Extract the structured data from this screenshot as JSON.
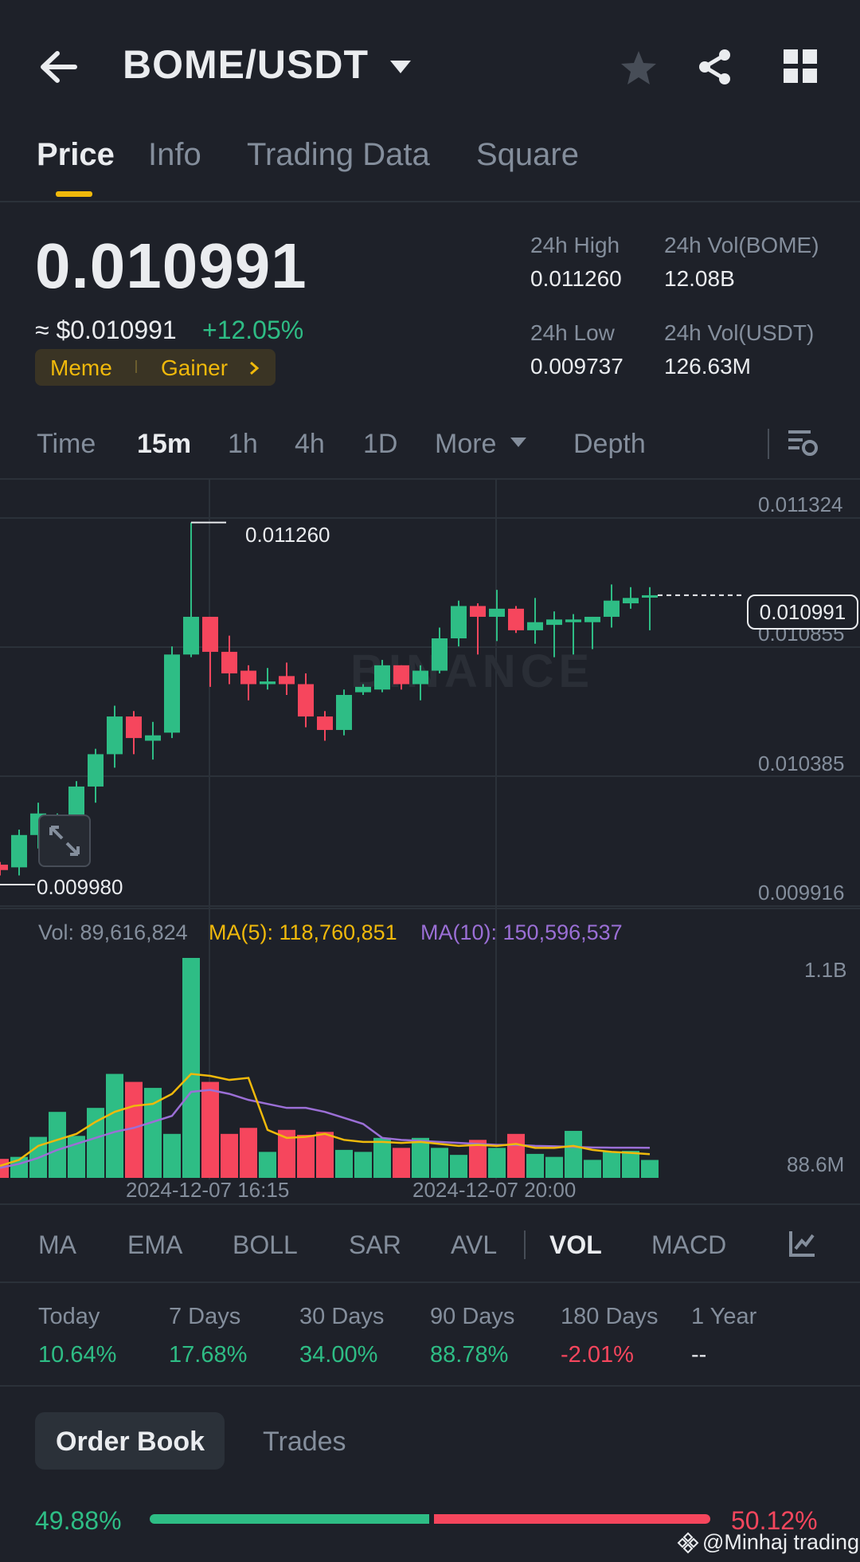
{
  "header": {
    "pair": "BOME/USDT",
    "icons": [
      "back-arrow-icon",
      "dropdown-caret-icon",
      "star-icon",
      "share-icon",
      "grid-icon"
    ]
  },
  "tabs": [
    {
      "label": "Price",
      "active": true
    },
    {
      "label": "Info"
    },
    {
      "label": "Trading Data"
    },
    {
      "label": "Square"
    }
  ],
  "ticker": {
    "last_price": "0.010991",
    "fiat_price": "≈ $0.010991",
    "change": "+12.05%",
    "tags": [
      "Meme",
      "Gainer"
    ],
    "high_label": "24h High",
    "high": "0.011260",
    "low_label": "24h Low",
    "low": "0.009737",
    "vol_base_label": "24h Vol(BOME)",
    "vol_base": "12.08B",
    "vol_quote_label": "24h Vol(USDT)",
    "vol_quote": "126.63M"
  },
  "intervals": [
    {
      "label": "Time"
    },
    {
      "label": "15m",
      "active": true
    },
    {
      "label": "1h"
    },
    {
      "label": "4h"
    },
    {
      "label": "1D"
    },
    {
      "label": "More"
    },
    {
      "label": "Depth"
    }
  ],
  "chart": {
    "watermark": "BINANCE",
    "price_axis": [
      "0.011324",
      "0.010855",
      "0.010385",
      "0.009916"
    ],
    "current_price_tag": "0.010991",
    "high_marker": "0.011260",
    "low_marker": "0.009980",
    "vol_axis_top": "1.1B",
    "vol_axis_bottom": "88.6M",
    "time_labels": [
      "2024-12-07 16:15",
      "2024-12-07 20:00"
    ],
    "vol_text": "Vol: 89,616,824",
    "ma5_text": "MA(5): 118,760,851",
    "ma10_text": "MA(10): 150,596,537",
    "colors": {
      "up": "#2ebd85",
      "down": "#f6465d",
      "ma5": "#f0b90b",
      "ma10": "#9b6fd6"
    }
  },
  "chart_data": {
    "type": "candlestick",
    "interval": "15m",
    "price_range": [
      0.009916,
      0.011324
    ],
    "candles": [
      {
        "o": 0.00999,
        "h": 0.01,
        "l": 0.00995,
        "c": 0.00997
      },
      {
        "o": 0.00998,
        "h": 0.01012,
        "l": 0.00995,
        "c": 0.0101
      },
      {
        "o": 0.0101,
        "h": 0.01022,
        "l": 0.01005,
        "c": 0.01018
      },
      {
        "o": 0.01008,
        "h": 0.01018,
        "l": 0.01002,
        "c": 0.01012
      },
      {
        "o": 0.01012,
        "h": 0.0103,
        "l": 0.0101,
        "c": 0.01028
      },
      {
        "o": 0.01028,
        "h": 0.01042,
        "l": 0.01022,
        "c": 0.0104
      },
      {
        "o": 0.0104,
        "h": 0.01058,
        "l": 0.01035,
        "c": 0.01054
      },
      {
        "o": 0.01054,
        "h": 0.01056,
        "l": 0.0104,
        "c": 0.01046
      },
      {
        "o": 0.01045,
        "h": 0.01052,
        "l": 0.01038,
        "c": 0.01047
      },
      {
        "o": 0.01048,
        "h": 0.0108,
        "l": 0.01046,
        "c": 0.01077
      },
      {
        "o": 0.01077,
        "h": 0.01126,
        "l": 0.01076,
        "c": 0.01091
      },
      {
        "o": 0.01091,
        "h": 0.01091,
        "l": 0.01065,
        "c": 0.01078
      },
      {
        "o": 0.01078,
        "h": 0.01084,
        "l": 0.01066,
        "c": 0.0107
      },
      {
        "o": 0.01071,
        "h": 0.01073,
        "l": 0.0106,
        "c": 0.01066
      },
      {
        "o": 0.01066,
        "h": 0.01072,
        "l": 0.01064,
        "c": 0.01067
      },
      {
        "o": 0.01069,
        "h": 0.01074,
        "l": 0.01062,
        "c": 0.01066
      },
      {
        "o": 0.01066,
        "h": 0.0107,
        "l": 0.0105,
        "c": 0.01054
      },
      {
        "o": 0.01054,
        "h": 0.01056,
        "l": 0.01045,
        "c": 0.01049
      },
      {
        "o": 0.01049,
        "h": 0.01064,
        "l": 0.01047,
        "c": 0.01062
      },
      {
        "o": 0.01063,
        "h": 0.01066,
        "l": 0.01062,
        "c": 0.01065
      },
      {
        "o": 0.01064,
        "h": 0.01075,
        "l": 0.01063,
        "c": 0.01073
      },
      {
        "o": 0.01073,
        "h": 0.01073,
        "l": 0.01064,
        "c": 0.01066
      },
      {
        "o": 0.01066,
        "h": 0.01073,
        "l": 0.0106,
        "c": 0.01071
      },
      {
        "o": 0.01071,
        "h": 0.01087,
        "l": 0.0107,
        "c": 0.01083
      },
      {
        "o": 0.01083,
        "h": 0.01097,
        "l": 0.0108,
        "c": 0.01095
      },
      {
        "o": 0.01095,
        "h": 0.01096,
        "l": 0.01077,
        "c": 0.01091
      },
      {
        "o": 0.01091,
        "h": 0.01101,
        "l": 0.01082,
        "c": 0.01094
      },
      {
        "o": 0.01094,
        "h": 0.01095,
        "l": 0.01085,
        "c": 0.01086
      },
      {
        "o": 0.01086,
        "h": 0.01098,
        "l": 0.01081,
        "c": 0.01089
      },
      {
        "o": 0.01088,
        "h": 0.01093,
        "l": 0.01076,
        "c": 0.0109
      },
      {
        "o": 0.01089,
        "h": 0.01092,
        "l": 0.01077,
        "c": 0.0109
      },
      {
        "o": 0.01089,
        "h": 0.01091,
        "l": 0.01079,
        "c": 0.01091
      },
      {
        "o": 0.01091,
        "h": 0.01103,
        "l": 0.01087,
        "c": 0.01097
      },
      {
        "o": 0.01096,
        "h": 0.01102,
        "l": 0.01094,
        "c": 0.01098
      },
      {
        "o": 0.01099,
        "h": 0.01102,
        "l": 0.01086,
        "c": 0.01099
      }
    ],
    "volume_range": [
      0,
      1100000000
    ],
    "volumes": [
      95000000,
      105000000,
      205000000,
      330000000,
      210000000,
      350000000,
      520000000,
      480000000,
      450000000,
      220000000,
      1100000000,
      480000000,
      220000000,
      250000000,
      130000000,
      240000000,
      215000000,
      230000000,
      140000000,
      130000000,
      200000000,
      150000000,
      200000000,
      150000000,
      115000000,
      190000000,
      150000000,
      220000000,
      120000000,
      105000000,
      235000000,
      90000000,
      130000000,
      135000000,
      89616824
    ],
    "ma5": [
      60000000,
      90000000,
      160000000,
      190000000,
      220000000,
      280000000,
      330000000,
      360000000,
      370000000,
      420000000,
      520000000,
      510000000,
      490000000,
      500000000,
      240000000,
      200000000,
      205000000,
      220000000,
      190000000,
      180000000,
      180000000,
      175000000,
      180000000,
      170000000,
      160000000,
      165000000,
      160000000,
      170000000,
      150000000,
      150000000,
      160000000,
      140000000,
      130000000,
      125000000,
      118760851
    ],
    "ma10": [
      50000000,
      70000000,
      100000000,
      140000000,
      170000000,
      200000000,
      230000000,
      250000000,
      280000000,
      310000000,
      430000000,
      440000000,
      420000000,
      390000000,
      370000000,
      350000000,
      350000000,
      330000000,
      300000000,
      270000000,
      200000000,
      190000000,
      185000000,
      180000000,
      175000000,
      170000000,
      165000000,
      165000000,
      160000000,
      158000000,
      155000000,
      152000000,
      151000000,
      151000000,
      150596537
    ],
    "time_labels": [
      "2024-12-07 16:15",
      "2024-12-07 20:00"
    ]
  },
  "indicators": [
    {
      "label": "MA"
    },
    {
      "label": "EMA"
    },
    {
      "label": "BOLL"
    },
    {
      "label": "SAR"
    },
    {
      "label": "AVL"
    },
    {
      "label": "VOL",
      "active": true
    },
    {
      "label": "MACD"
    }
  ],
  "performance": [
    {
      "label": "Today",
      "value": "10.64%",
      "dir": "pos"
    },
    {
      "label": "7 Days",
      "value": "17.68%",
      "dir": "pos"
    },
    {
      "label": "30 Days",
      "value": "34.00%",
      "dir": "pos"
    },
    {
      "label": "90 Days",
      "value": "88.78%",
      "dir": "pos"
    },
    {
      "label": "180 Days",
      "value": "-2.01%",
      "dir": "neg"
    },
    {
      "label": "1 Year",
      "value": "--",
      "dir": "none"
    }
  ],
  "orderbook": {
    "tab_order_book": "Order Book",
    "tab_trades": "Trades",
    "bid_pct": "49.88%",
    "ask_pct": "50.12%",
    "bid_fraction": 0.4988
  },
  "watermark": "@Minhaj trading"
}
